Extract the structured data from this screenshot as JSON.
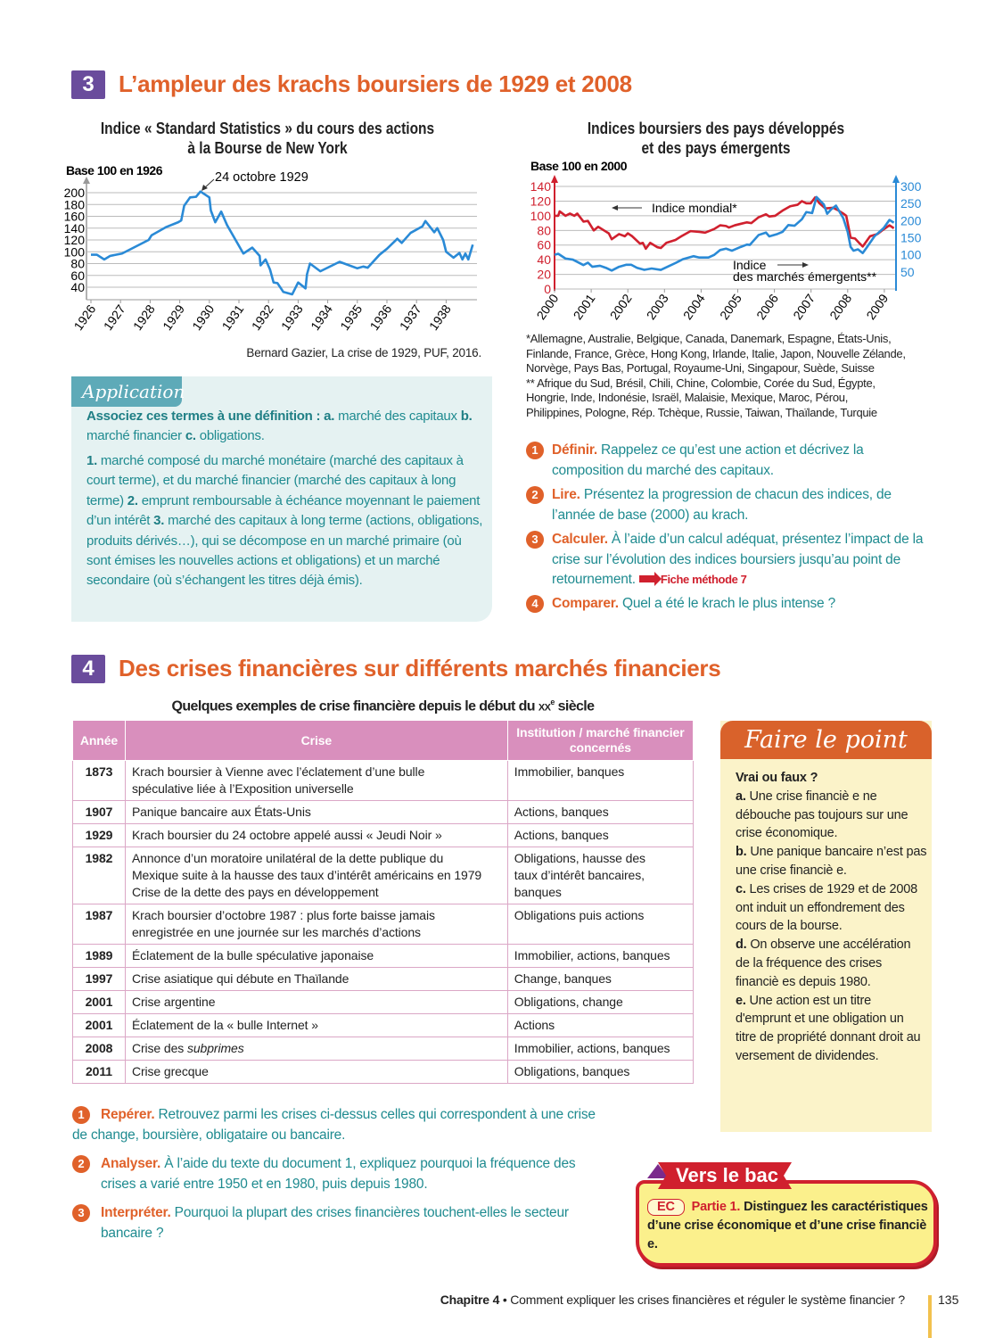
{
  "section3": {
    "number": "3",
    "title": "L’ampleur des krachs boursiers de 1929 et 2008"
  },
  "chart1_title": [
    "Indice « Standard Statistics » du cours des actions",
    "à la Bourse de New York"
  ],
  "chart2_title": [
    "Indices boursiers des pays développés",
    "et des pays émergents"
  ],
  "chart_data": [
    {
      "type": "line",
      "title": "Indice « Standard Statistics » du cours des actions à la Bourse de New York",
      "ylabel": "Base 100 en 1926",
      "ylim": [
        30,
        205
      ],
      "yticks": [
        40,
        60,
        80,
        100,
        120,
        140,
        160,
        180,
        200
      ],
      "xticks": [
        "1926",
        "1927",
        "1928",
        "1929",
        "1930",
        "1931",
        "1932",
        "1933",
        "1934",
        "1935",
        "1936",
        "1937",
        "1938"
      ],
      "grid": true,
      "annotation": "24 octobre 1929",
      "color": "#2a8ad6",
      "x": [
        1926.0,
        1926.2,
        1926.45,
        1926.65,
        1927.05,
        1927.95,
        1928.05,
        1928.55,
        1928.95,
        1929.05,
        1929.15,
        1929.35,
        1929.55,
        1929.7,
        1930.0,
        1930.05,
        1930.2,
        1930.4,
        1930.6,
        1931.15,
        1931.45,
        1931.7,
        1931.73,
        1931.9,
        1932.05,
        1932.17,
        1932.3,
        1932.5,
        1932.8,
        1933.0,
        1933.25,
        1933.3,
        1933.4,
        1933.75,
        1934.4,
        1935.0,
        1935.2,
        1935.35,
        1935.75,
        1936.0,
        1936.35,
        1936.5,
        1936.8,
        1937.2,
        1937.3,
        1937.6,
        1937.7,
        1937.9,
        1938.0,
        1938.25,
        1938.45,
        1938.55,
        1938.65,
        1938.75,
        1938.9
      ],
      "values": [
        95,
        95,
        87,
        93,
        97,
        120,
        128,
        142,
        150,
        153,
        178,
        192,
        193,
        202,
        192,
        170,
        150,
        168,
        145,
        97,
        107,
        93,
        77,
        87,
        70,
        48,
        47,
        32,
        28,
        48,
        38,
        62,
        80,
        67,
        83,
        72,
        75,
        73,
        95,
        105,
        122,
        115,
        132,
        143,
        152,
        133,
        140,
        120,
        100,
        90,
        98,
        87,
        97,
        87,
        112
      ],
      "source": "Bernard Gazier, La crise de 1929, PUF, 2016."
    },
    {
      "type": "line",
      "title": "Indices boursiers des pays développés et des pays émergents",
      "ylabel": "Base 100 en 2000",
      "ylim": [
        0,
        140
      ],
      "yticks": [
        0,
        20,
        40,
        60,
        80,
        100,
        120,
        140
      ],
      "y2lim": [
        0,
        300
      ],
      "y2ticks": [
        50,
        100,
        150,
        200,
        250,
        300
      ],
      "xticks": [
        "2000",
        "2001",
        "2002",
        "2003",
        "2004",
        "2005",
        "2006",
        "2007",
        "2008",
        "2009"
      ],
      "grid": true,
      "series": [
        {
          "name": "Indice mondial*",
          "axis": "left",
          "color": "#d0202e",
          "x": [
            2000.0,
            2000.1,
            2000.14,
            2000.3,
            2000.42,
            2000.54,
            2000.62,
            2000.79,
            2000.91,
            2001.07,
            2001.19,
            2001.35,
            2001.48,
            2001.56,
            2001.76,
            2001.92,
            2002.0,
            2002.12,
            2002.33,
            2002.41,
            2002.49,
            2002.61,
            2002.81,
            2002.9,
            2003.05,
            2003.3,
            2003.46,
            2003.71,
            2003.95,
            2004.11,
            2004.36,
            2004.52,
            2004.68,
            2004.76,
            2004.92,
            2005.08,
            2005.25,
            2005.37,
            2005.57,
            2005.77,
            2005.86,
            2006.02,
            2006.22,
            2006.43,
            2006.63,
            2006.75,
            2006.87,
            2006.99,
            2007.11,
            2007.23,
            2007.39,
            2007.6,
            2007.72,
            2007.88,
            2007.96,
            2008.08,
            2008.2,
            2008.33,
            2008.41,
            2008.61,
            2008.81,
            2008.94,
            2009.14,
            2009.26
          ],
          "values": [
            100,
            100,
            106,
            100,
            103,
            100,
            103,
            92,
            93,
            80,
            85,
            80,
            76,
            68,
            75,
            72,
            76,
            72,
            62,
            63,
            55,
            63,
            57,
            56,
            63,
            67,
            72,
            79,
            78,
            77,
            82,
            87,
            86,
            84,
            87,
            89,
            91,
            90,
            98,
            102,
            99,
            100,
            107,
            113,
            115,
            120,
            117,
            117,
            125,
            117,
            110,
            111,
            108,
            103,
            100,
            70,
            69,
            62,
            58,
            72,
            75,
            80,
            87,
            83
          ]
        },
        {
          "name": "Indice des marchés émergents**",
          "axis": "right",
          "color": "#2a8ad6",
          "x": [
            2000.0,
            2000.1,
            2000.3,
            2000.5,
            2000.79,
            2000.91,
            2001.03,
            2001.24,
            2001.4,
            2001.56,
            2001.76,
            2001.96,
            2002.09,
            2002.25,
            2002.45,
            2002.65,
            2002.9,
            2003.14,
            2003.3,
            2003.5,
            2003.79,
            2003.95,
            2004.2,
            2004.36,
            2004.52,
            2004.68,
            2004.84,
            2005.08,
            2005.25,
            2005.33,
            2005.57,
            2005.77,
            2005.86,
            2006.06,
            2006.22,
            2006.38,
            2006.55,
            2006.75,
            2006.87,
            2007.03,
            2007.15,
            2007.27,
            2007.35,
            2007.44,
            2007.56,
            2007.68,
            2007.88,
            2008.0,
            2008.08,
            2008.16,
            2008.28,
            2008.41,
            2008.53,
            2008.73,
            2008.98,
            2009.14,
            2009.26
          ],
          "values": [
            100,
            103,
            89,
            86,
            70,
            77,
            65,
            68,
            62,
            54,
            65,
            71,
            71,
            62,
            56,
            60,
            56,
            68,
            76,
            87,
            96,
            92,
            92,
            100,
            114,
            118,
            112,
            123,
            130,
            129,
            158,
            165,
            154,
            160,
            167,
            187,
            185,
            204,
            225,
            222,
            269,
            256,
            247,
            220,
            234,
            244,
            207,
            167,
            123,
            112,
            116,
            105,
            123,
            154,
            178,
            202,
            194
          ]
        }
      ],
      "annotations": [
        "Indice mondial*",
        "Indice",
        "des marchés émergents**"
      ]
    }
  ],
  "footnotes": [
    "*Allemagne, Australie, Belgique, Canada, Danemark, Espagne, États-Unis,",
    "Finlande, France, Grèce, Hong Kong, Irlande, Italie, Japon, Nouvelle Zélande,",
    "Norvège, Pays Bas, Portugal, Royaume-Uni, Singapour, Suède, Suisse",
    "** Afrique du Sud, Brésil, Chili, Chine, Colombie, Corée du Sud, Égypte,",
    "Hongrie, Inde, Indonésie, Israël, Malaisie, Mexique, Maroc, Pérou,",
    "Philippines, Pologne, Rép. Tchèque, Russie, Taiwan, Thaïlande, Turquie"
  ],
  "application": {
    "tab": "Application",
    "p1": [
      {
        "t": "Associez ces termes à une définition : a.",
        "b": true
      },
      {
        "t": " marché des capitaux "
      },
      {
        "t": "b.",
        "b": true
      },
      {
        "t": " marché financier "
      },
      {
        "t": "c.",
        "b": true
      },
      {
        "t": " obligations."
      }
    ],
    "p2": [
      {
        "t": "1.",
        "b": true
      },
      {
        "t": " marché composé du marché monétaire (marché des capitaux à court terme), et du marché financier (marché des capitaux à long terme) "
      },
      {
        "t": "2.",
        "b": true
      },
      {
        "t": " emprunt remboursable à échéance moyennant le paiement d’un intérêt "
      },
      {
        "t": "3.",
        "b": true
      },
      {
        "t": " marché des capitaux à long terme (actions, obligations, produits dérivés…), qui se décompose en un marché primaire (où sont émises les nouvelles actions et obligations) et un marché secondaire (où s’échangent les titres déjà émis)."
      }
    ]
  },
  "questions3": [
    {
      "n": "1",
      "parts": [
        {
          "t": "Définir.",
          "b": true
        },
        {
          "t": " Rappelez ce qu’est une action et décrivez la composition du marché des capitaux."
        }
      ]
    },
    {
      "n": "2",
      "parts": [
        {
          "t": "Lire.",
          "b": true
        },
        {
          "t": " Présentez la progression de chacun des indices, de l’année de base (2000) au krach."
        }
      ]
    },
    {
      "n": "3",
      "parts": [
        {
          "t": "Calculer.",
          "b": true
        },
        {
          "t": " À l’aide d’un calcul adéquat, présentez l’impact de la crise sur l’évolution des indices boursiers jusqu’au point de retournement."
        }
      ],
      "link": "Fiche méthode 7"
    },
    {
      "n": "4",
      "parts": [
        {
          "t": "Comparer.",
          "b": true
        },
        {
          "t": " Quel a été le krach le plus intense ?"
        }
      ]
    }
  ],
  "section4": {
    "number": "4",
    "title": "Des crises financières sur différents marchés financiers",
    "table_title": "Quelques exemples de crise financière depuis le début du",
    "table_title_century": "xx",
    "table_title_sup": "e",
    "table_title_end": " siècle"
  },
  "table": {
    "headers": [
      "Année",
      "Crise",
      "Institution / marché financier concernés"
    ],
    "rows": [
      {
        "year": "1873",
        "crise": [
          "Krach boursier à Vienne avec l’éclatement d’une bulle",
          "spéculative liée à l’Exposition universelle"
        ],
        "inst": [
          "Immobilier, banques"
        ]
      },
      {
        "year": "1907",
        "crise": [
          "Panique bancaire aux États-Unis"
        ],
        "inst": [
          "Actions, banques"
        ]
      },
      {
        "year": "1929",
        "crise": [
          "Krach boursier du 24 octobre appelé aussi « Jeudi Noir »"
        ],
        "inst": [
          "Actions, banques"
        ]
      },
      {
        "year": "1982",
        "crise": [
          "Annonce d’un moratoire unilatéral de la dette publique du",
          "Mexique suite à la hausse des taux d’intérêt américains en 1979",
          "Crise de la dette des pays en développement"
        ],
        "inst": [
          "Obligations, hausse des",
          "taux d’intérêt bancaires,",
          "banques"
        ]
      },
      {
        "year": "1987",
        "crise": [
          "Krach boursier d’octobre 1987 : plus forte baisse jamais",
          "enregistrée en une journée sur les marchés d’actions"
        ],
        "inst": [
          "Obligations puis actions"
        ]
      },
      {
        "year": "1989",
        "crise": [
          "Éclatement de la bulle spéculative japonaise"
        ],
        "inst": [
          "Immobilier, actions, banques"
        ]
      },
      {
        "year": "1997",
        "crise": [
          "Crise asiatique qui débute en Thaïlande"
        ],
        "inst": [
          "Change, banques"
        ]
      },
      {
        "year": "2001",
        "crise": [
          "Crise argentine"
        ],
        "inst": [
          "Obligations, change"
        ]
      },
      {
        "year": "2001",
        "crise": [
          "Éclatement de la « bulle Internet »"
        ],
        "inst": [
          "Actions"
        ]
      },
      {
        "year": "2008",
        "crise": [
          "Crise des "
        ],
        "crise_em": "subprimes",
        "inst": [
          "Immobilier, actions, banques"
        ]
      },
      {
        "year": "2011",
        "crise": [
          "Crise grecque"
        ],
        "inst": [
          "Obligations, banques"
        ]
      }
    ]
  },
  "questions4": [
    {
      "n": "1",
      "parts": [
        {
          "t": "Repérer.",
          "b": true
        },
        {
          "t": " Retrouvez parmi les crises ci-dessus celles qui correspondent à une crise de change, boursière, obligataire ou bancaire."
        }
      ]
    },
    {
      "n": "2",
      "parts": [
        {
          "t": "Analyser.",
          "b": true
        },
        {
          "t": " À l’aide du texte du document 1, expliquez pourquoi la fréquence des crises a varié entre 1950 et en 1980, puis depuis 1980."
        }
      ]
    },
    {
      "n": "3",
      "parts": [
        {
          "t": "Interpréter.",
          "b": true
        },
        {
          "t": " Pourquoi la plupart des crises financières touchent-elles le secteur bancaire ?"
        }
      ]
    }
  ],
  "faire_le_point": {
    "title": "Faire le point",
    "body": [
      {
        "t": "Vrai ou faux ?",
        "b": true,
        "br": true
      },
      {
        "t": "a.",
        "b": true
      },
      {
        "t": " Une crise financiè e ne débouche pas toujours sur une crise économique.",
        "br": true
      },
      {
        "t": "b.",
        "b": true
      },
      {
        "t": " Une panique bancaire n’est pas une crise financiè e.",
        "br": true
      },
      {
        "t": "c.",
        "b": true
      },
      {
        "t": " Les crises de 1929 et de 2008 ont induit un effondrement des cours de la bourse.",
        "br": true
      },
      {
        "t": "d.",
        "b": true
      },
      {
        "t": " On observe une accélération de la fréquence des crises financiè es depuis 1980.",
        "br": true
      },
      {
        "t": "e.",
        "b": true
      },
      {
        "t": " Une action est un titre d'emprunt et une obligation un titre de propriété donnant droit au versement de dividendes."
      }
    ]
  },
  "vers_le_bac": {
    "title": "Vers le bac",
    "badge": "EC",
    "part": "Partie 1.",
    "text": " Distinguez les caractéristiques d’une crise économique et d’une crise financiè e."
  },
  "footer": {
    "chapter": "Chapitre 4",
    "sep": " • ",
    "title": "Comment expliquer les crises financières et réguler le système financier ?",
    "page": "135"
  },
  "colors": {
    "accent": "#e0612a",
    "section_badge": "#6a4c9c",
    "teal": "#1f8b90",
    "table_header": "#d98fbd",
    "red": "#d0202e"
  }
}
